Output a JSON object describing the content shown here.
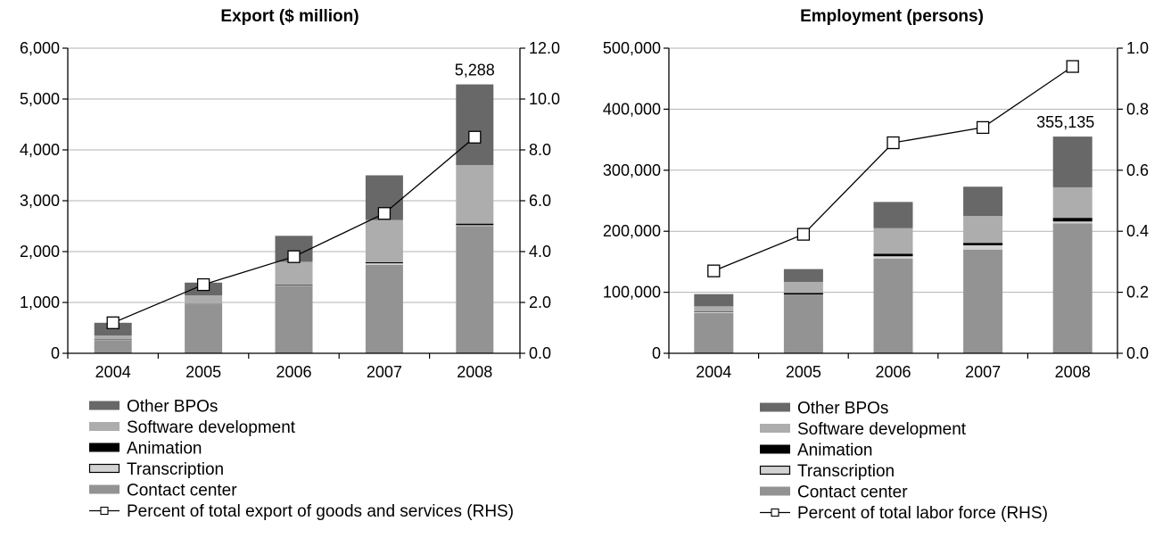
{
  "chart_data": [
    {
      "type": "bar",
      "stacked": true,
      "title": "Export ($ million)",
      "categories": [
        "2004",
        "2005",
        "2006",
        "2007",
        "2008"
      ],
      "ylim": [
        0,
        6000
      ],
      "y_ticks": [
        "0",
        "1,000",
        "2,000",
        "3,000",
        "4,000",
        "5,000",
        "6,000"
      ],
      "y2lim": [
        0,
        12
      ],
      "y2_ticks": [
        "0.0",
        "2.0",
        "4.0",
        "6.0",
        "8.0",
        "10.0",
        "12.0"
      ],
      "series": [
        {
          "name": "Contact center",
          "color": "#939393",
          "values": [
            250,
            950,
            1330,
            1740,
            2500
          ]
        },
        {
          "name": "Transcription",
          "color": "#d2d2d2",
          "values": [
            10,
            10,
            10,
            30,
            20
          ]
        },
        {
          "name": "Animation",
          "color": "#000000",
          "values": [
            10,
            10,
            10,
            20,
            30
          ]
        },
        {
          "name": "Software development",
          "color": "#adadad",
          "values": [
            80,
            170,
            450,
            830,
            1150
          ]
        },
        {
          "name": "Other BPOs",
          "color": "#686868",
          "values": [
            250,
            250,
            510,
            880,
            1588
          ]
        }
      ],
      "line": {
        "name": "Percent of total export of goods and services (RHS)",
        "axis": "right",
        "values": [
          1.2,
          2.7,
          3.8,
          5.5,
          8.5
        ]
      },
      "annotations": [
        {
          "category": "2008",
          "text": "5,288"
        }
      ],
      "grid": true,
      "legend": {
        "placement": "bottom",
        "items": [
          {
            "label": "Other BPOs",
            "kind": "bar",
            "color": "#686868"
          },
          {
            "label": "Software development",
            "kind": "bar",
            "color": "#adadad"
          },
          {
            "label": "Animation",
            "kind": "bar",
            "color": "#000000"
          },
          {
            "label": "Transcription",
            "kind": "bar-outline",
            "color": "#d2d2d2"
          },
          {
            "label": "Contact center",
            "kind": "bar",
            "color": "#939393"
          },
          {
            "label": "Percent of total export of goods and services (RHS)",
            "kind": "line"
          }
        ]
      }
    },
    {
      "type": "bar",
      "stacked": true,
      "title": "Employment (persons)",
      "categories": [
        "2004",
        "2005",
        "2006",
        "2007",
        "2008"
      ],
      "ylim": [
        0,
        500000
      ],
      "y_ticks": [
        "0",
        "100,000",
        "200,000",
        "300,000",
        "400,000",
        "500,000"
      ],
      "y2lim": [
        0,
        1
      ],
      "y2_ticks": [
        "0.0",
        "0.2",
        "0.4",
        "0.6",
        "0.8",
        "1.0"
      ],
      "series": [
        {
          "name": "Contact center",
          "color": "#939393",
          "values": [
            66000,
            95000,
            155000,
            170000,
            213000
          ]
        },
        {
          "name": "Transcription",
          "color": "#d2d2d2",
          "values": [
            2000,
            1000,
            4000,
            7000,
            3000
          ]
        },
        {
          "name": "Animation",
          "color": "#000000",
          "values": [
            1000,
            3000,
            4000,
            4000,
            6000
          ]
        },
        {
          "name": "Software development",
          "color": "#adadad",
          "values": [
            8000,
            18000,
            42000,
            44000,
            50000
          ]
        },
        {
          "name": "Other BPOs",
          "color": "#686868",
          "values": [
            20000,
            21000,
            43000,
            48000,
            83135
          ]
        }
      ],
      "line": {
        "name": "Percent of total labor force (RHS)",
        "axis": "right",
        "values": [
          0.27,
          0.39,
          0.69,
          0.74,
          0.94
        ]
      },
      "annotations": [
        {
          "category": "2008",
          "text": "355,135"
        }
      ],
      "grid": true,
      "legend": {
        "placement": "bottom",
        "items": [
          {
            "label": "Other BPOs",
            "kind": "bar",
            "color": "#686868"
          },
          {
            "label": "Software development",
            "kind": "bar",
            "color": "#adadad"
          },
          {
            "label": "Animation",
            "kind": "bar",
            "color": "#000000"
          },
          {
            "label": "Transcription",
            "kind": "bar-outline",
            "color": "#d2d2d2"
          },
          {
            "label": "Contact center",
            "kind": "bar",
            "color": "#939393"
          },
          {
            "label": "Percent of total labor force (RHS)",
            "kind": "line"
          }
        ]
      }
    }
  ]
}
